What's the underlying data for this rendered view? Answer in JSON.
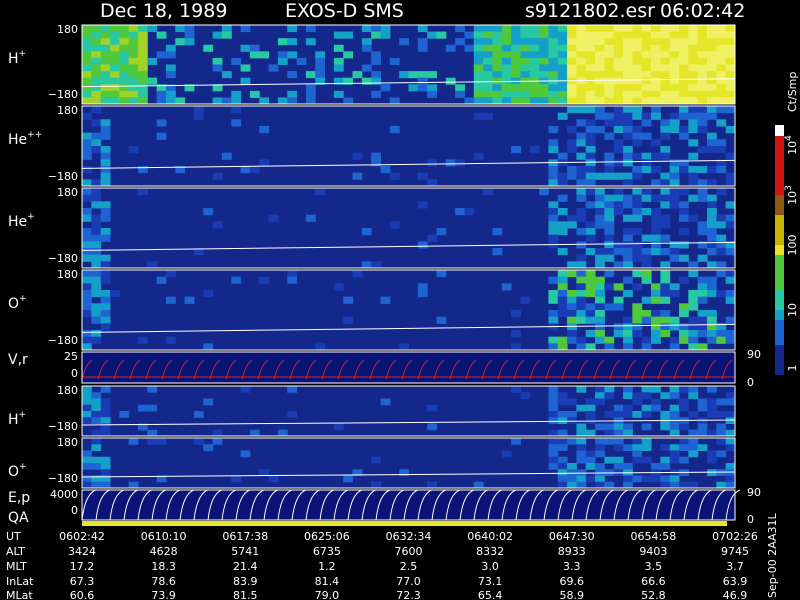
{
  "header": {
    "date": "Dec 18, 1989",
    "instrument": "EXOS-D SMS",
    "file": "s9121802.esr",
    "time": "06:02:42"
  },
  "panels": [
    {
      "label": "H",
      "sup": "+",
      "ytop": "180",
      "ybottom": "−180"
    },
    {
      "label": "He",
      "sup": "++",
      "ytop": "180",
      "ybottom": "−180"
    },
    {
      "label": "He",
      "sup": "+",
      "ytop": "180",
      "ybottom": "−180"
    },
    {
      "label": "O",
      "sup": "+",
      "ytop": "180",
      "ybottom": "−180"
    },
    {
      "label": "V,r",
      "ytop": "25",
      "ybottom": "0",
      "rtop": "90",
      "rbottom": "0"
    },
    {
      "label": "H",
      "sup": "+",
      "ytop": "180",
      "ybottom": "−180"
    },
    {
      "label": "O",
      "sup": "+",
      "ytop": "180",
      "ybottom": "−180"
    },
    {
      "label": "E,p",
      "label2": "QA",
      "ytop": "4000",
      "ybottom": "0",
      "rtop": "90",
      "rbottom": "0"
    }
  ],
  "colorbar": {
    "unit": "Ct/Smp",
    "labels": [
      {
        "base": "10",
        "exp": "4"
      },
      {
        "base": "10",
        "exp": "3"
      },
      {
        "base": "100"
      },
      {
        "base": "10"
      },
      {
        "base": "1"
      }
    ]
  },
  "table": {
    "rows": [
      {
        "name": "UT",
        "values": [
          "0602:42",
          "0610:10",
          "0617:38",
          "0625:06",
          "0632:34",
          "0640:02",
          "0647:30",
          "0654:58",
          "0702:26"
        ]
      },
      {
        "name": "ALT",
        "values": [
          "3424",
          "4628",
          "5741",
          "6735",
          "7600",
          "8332",
          "8933",
          "9403",
          "9745"
        ]
      },
      {
        "name": "MLT",
        "values": [
          "17.2",
          "18.3",
          "21.4",
          "1.2",
          "2.5",
          "3.0",
          "3.3",
          "3.5",
          "3.7"
        ]
      },
      {
        "name": "InLat",
        "values": [
          "67.3",
          "78.6",
          "83.9",
          "81.4",
          "77.0",
          "73.1",
          "69.6",
          "66.6",
          "63.9"
        ]
      },
      {
        "name": "MLat",
        "values": [
          "60.6",
          "73.9",
          "81.5",
          "79.0",
          "72.3",
          "65.4",
          "58.9",
          "52.8",
          "46.9"
        ]
      }
    ]
  },
  "footer": "Sep-00  2AA31L"
}
